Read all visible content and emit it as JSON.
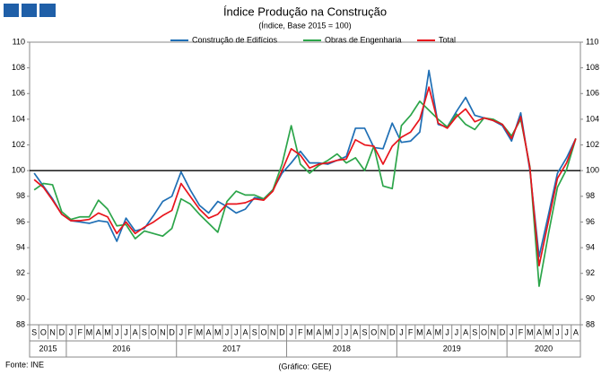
{
  "chart_data": {
    "type": "line",
    "title": "Índice Produção na Construção",
    "subtitle": "(Índice, Base 2015 = 100)",
    "categories": [
      "S",
      "O",
      "N",
      "D",
      "J",
      "F",
      "M",
      "A",
      "M",
      "J",
      "J",
      "A",
      "S",
      "O",
      "N",
      "D",
      "J",
      "F",
      "M",
      "A",
      "M",
      "J",
      "J",
      "A",
      "S",
      "O",
      "N",
      "D",
      "J",
      "F",
      "M",
      "A",
      "M",
      "J",
      "J",
      "A",
      "S",
      "O",
      "N",
      "D",
      "J",
      "F",
      "M",
      "A",
      "M",
      "J",
      "J",
      "A",
      "S",
      "O",
      "N",
      "D",
      "J",
      "F",
      "M",
      "A",
      "M",
      "J",
      "J",
      "A"
    ],
    "years": [
      "2015",
      "2016",
      "2017",
      "2018",
      "2019",
      "2020"
    ],
    "series": [
      {
        "name": "Construção de Edifícios",
        "color": "#1f6fb5",
        "values": [
          99.8,
          98.8,
          97.8,
          96.6,
          96.1,
          96.0,
          95.9,
          96.1,
          96.0,
          94.5,
          96.3,
          95.3,
          95.5,
          96.5,
          97.6,
          98.0,
          99.9,
          98.5,
          97.3,
          96.7,
          97.6,
          97.2,
          96.7,
          97.0,
          97.9,
          97.8,
          98.5,
          99.8,
          100.6,
          101.5,
          100.6,
          100.6,
          100.5,
          100.8,
          101.1,
          103.3,
          103.3,
          101.8,
          101.7,
          103.7,
          102.2,
          102.3,
          103.0,
          107.8,
          103.6,
          103.4,
          104.6,
          105.7,
          104.3,
          104.1,
          103.9,
          103.5,
          102.3,
          104.5,
          100.0,
          93.3,
          96.5,
          99.8,
          101.0,
          102.5
        ]
      },
      {
        "name": "Obras de Engenharia",
        "color": "#2ca54a",
        "values": [
          98.5,
          99.0,
          98.9,
          96.8,
          96.2,
          96.4,
          96.4,
          97.7,
          97.0,
          95.7,
          95.8,
          94.7,
          95.3,
          95.1,
          94.9,
          95.5,
          97.8,
          97.4,
          96.6,
          95.9,
          95.2,
          97.6,
          98.4,
          98.1,
          98.1,
          97.8,
          98.5,
          100.5,
          103.5,
          100.5,
          99.8,
          100.4,
          100.8,
          101.3,
          100.6,
          101.0,
          100.0,
          101.9,
          98.8,
          98.6,
          103.5,
          104.3,
          105.4,
          104.7,
          104.0,
          103.4,
          104.4,
          103.6,
          103.2,
          104.1,
          104.0,
          103.6,
          102.7,
          104.0,
          100.3,
          91.0,
          95.0,
          98.7,
          100.1,
          102.5
        ]
      },
      {
        "name": "Total",
        "color": "#e8141c",
        "values": [
          99.3,
          98.7,
          97.7,
          96.6,
          96.1,
          96.1,
          96.2,
          96.7,
          96.4,
          95.1,
          96.0,
          95.1,
          95.6,
          96.0,
          96.5,
          96.9,
          99.0,
          98.0,
          97.0,
          96.3,
          96.6,
          97.4,
          97.4,
          97.5,
          97.8,
          97.7,
          98.4,
          100.0,
          101.7,
          101.2,
          100.2,
          100.5,
          100.6,
          100.8,
          100.9,
          102.4,
          102.0,
          101.9,
          100.5,
          101.9,
          102.6,
          103.0,
          104.0,
          106.5,
          103.7,
          103.3,
          104.2,
          104.8,
          103.8,
          104.1,
          103.9,
          103.6,
          102.5,
          104.2,
          100.2,
          92.6,
          96.0,
          99.4,
          100.6,
          102.5
        ]
      }
    ],
    "ylim": [
      88,
      110
    ],
    "yticks": [
      88,
      90,
      92,
      94,
      96,
      98,
      100,
      102,
      104,
      106,
      108,
      110
    ],
    "reference_line": 100,
    "source": "Fonte: INE",
    "credit": "(Gráfico: GEE)"
  }
}
